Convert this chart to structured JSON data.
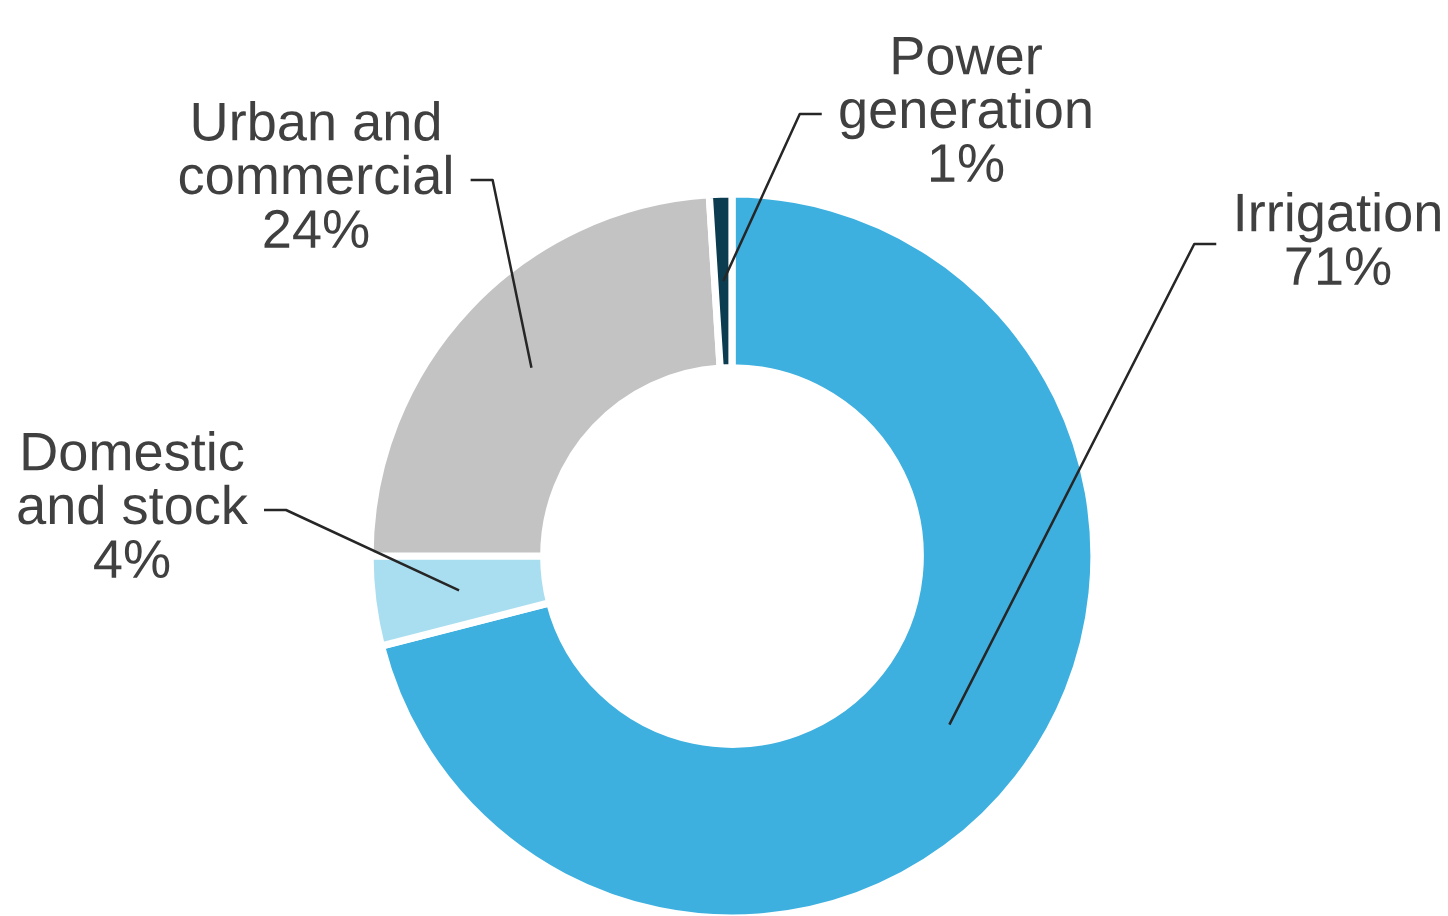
{
  "chart_data": {
    "type": "donut",
    "categories": [
      "Irrigation",
      "Domestic\nand stock",
      "Urban and\ncommercial",
      "Power\ngeneration"
    ],
    "values": [
      71,
      4,
      24,
      1
    ],
    "value_labels": [
      "71%",
      "4%",
      "24%",
      "1%"
    ],
    "colors": [
      "#3db0e0",
      "#a9def0",
      "#c3c3c3",
      "#0c3c50"
    ]
  }
}
